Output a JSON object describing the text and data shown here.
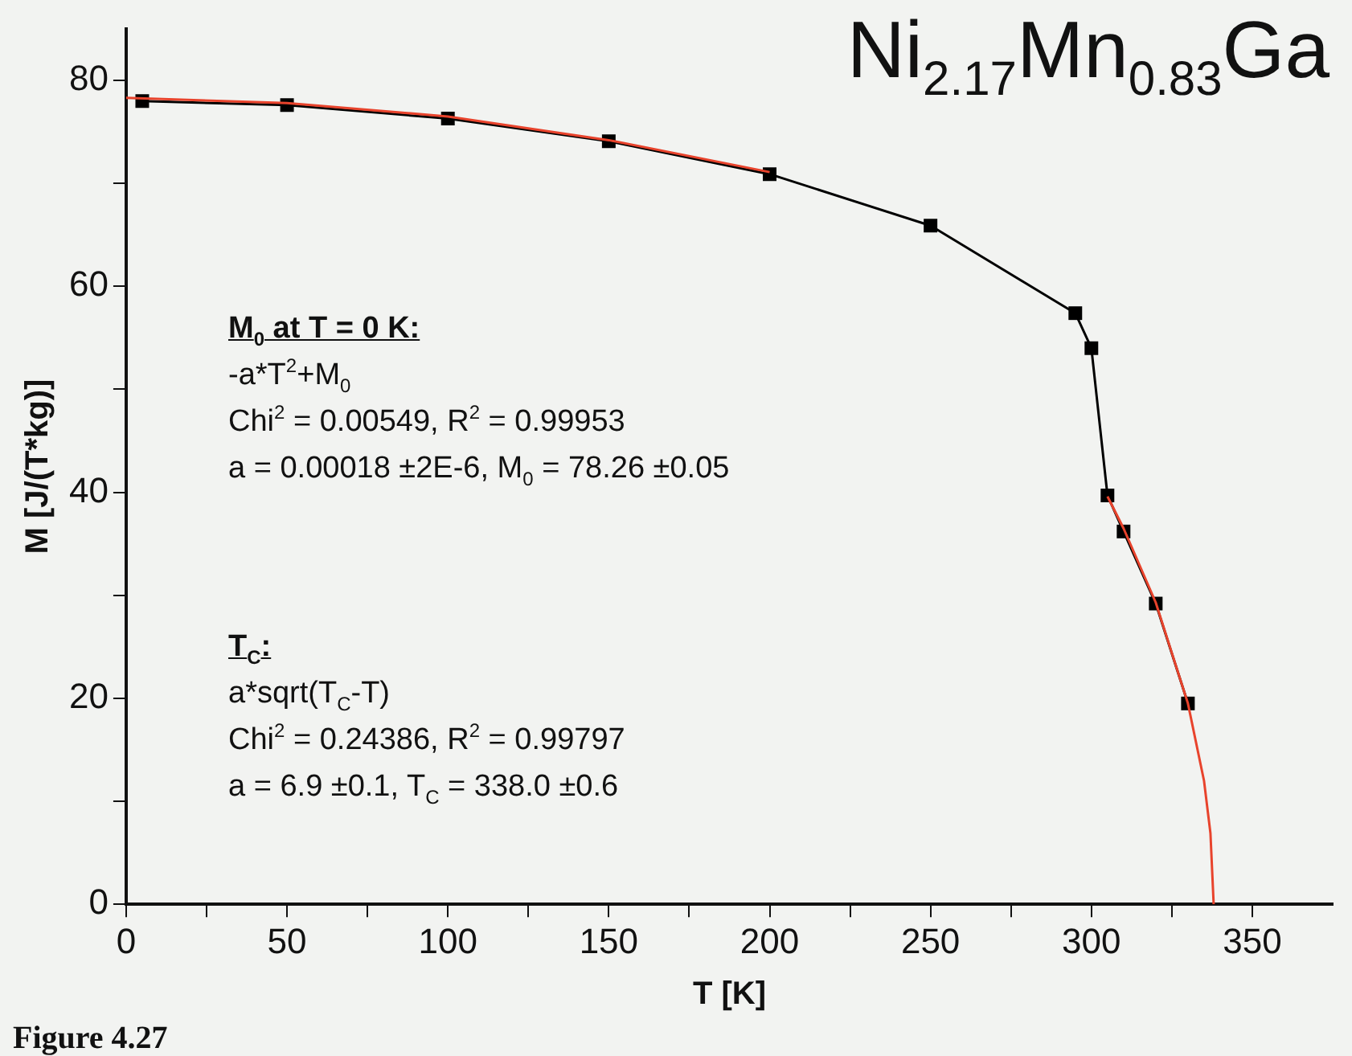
{
  "chart_data": {
    "type": "line",
    "title": "Ni$_{2.17}$Mn$_{0.83}$Ga",
    "xlabel": "T [K]",
    "ylabel": "M [J/(T*kg)]",
    "annotations": [
      "M$_{0}$ at T = 0 K:\n-a*T$^{2}$+M$_{0}$\nChi$^{2}$ = 0.00549, R$^{2}$ = 0.99953\na = 0.00018 ±2E-6, M$_{0}$ = 78.26 ±0.05",
      "T$_{C}$:\na*sqrt(T$_{C}$-T)\nChi$^{2}$ = 0.24386, R$^{2}$ = 0.99797\na = 6.9  ±0.1, T$_{C}$ = 338.0 ±0.6",
      "Figure 4.27"
    ],
    "series": [
      {
        "color": "#e8432c",
        "marker": "none",
        "x": [
          0,
          50,
          100,
          150,
          200
        ],
        "values": [
          78.3,
          77.8,
          76.5,
          74.2,
          71.1
        ]
      },
      {
        "color": "#e8432c",
        "marker": "none",
        "x": [
          305,
          310,
          320,
          330,
          335,
          337,
          338
        ],
        "values": [
          39.6,
          36.5,
          29.3,
          19.5,
          12.0,
          6.9,
          0
        ]
      },
      {
        "color": "#000000",
        "marker": "square",
        "x": [
          5,
          50,
          100,
          150,
          200,
          250,
          295,
          300,
          305,
          310,
          320,
          330
        ],
        "values": [
          78.0,
          77.6,
          76.3,
          74.1,
          70.9,
          65.9,
          57.4,
          54.0,
          39.7,
          36.2,
          29.2,
          19.5
        ]
      }
    ],
    "xlim": [
      0,
      375
    ],
    "xticks": [
      0,
      {
        "value": 25,
        "label": null
      },
      50,
      {
        "value": 75,
        "label": null
      },
      100,
      {
        "value": 125,
        "label": null
      },
      150,
      {
        "value": 175,
        "label": null
      },
      200,
      {
        "value": 225,
        "label": null
      },
      250,
      {
        "value": 275,
        "label": null
      },
      300,
      {
        "value": 325,
        "label": null
      },
      350
    ],
    "ylim": [
      0,
      85
    ],
    "yticks": [
      0,
      {
        "value": 10,
        "label": null
      },
      20,
      {
        "value": 30,
        "label": null
      },
      40,
      {
        "value": 50,
        "label": null
      },
      60,
      {
        "value": 70,
        "label": null
      },
      80
    ],
    "grid": false,
    "legend": false,
    "line_style": "solid"
  }
}
